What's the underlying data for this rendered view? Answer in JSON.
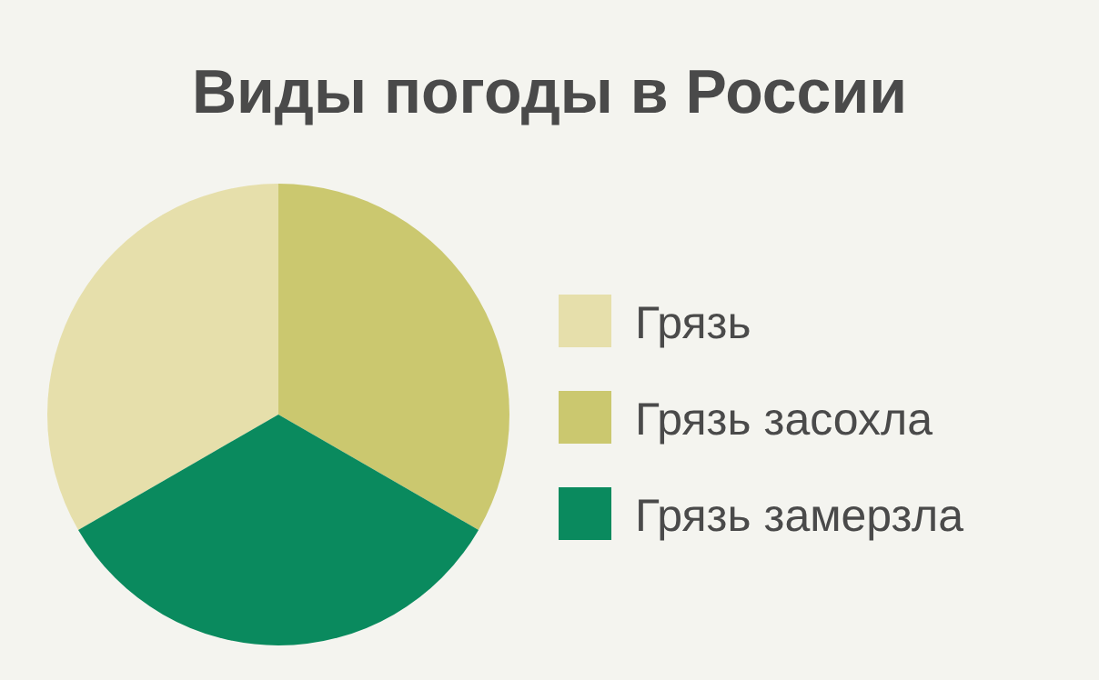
{
  "chart_data": {
    "type": "pie",
    "title": "Виды погоды в России",
    "categories": [
      "Грязь",
      "Грязь засохла",
      "Грязь замерзла"
    ],
    "values": [
      33.33,
      33.33,
      33.34
    ],
    "colors": [
      "#e6dfab",
      "#cbc86f",
      "#0a8a5e"
    ],
    "legend": "right"
  }
}
